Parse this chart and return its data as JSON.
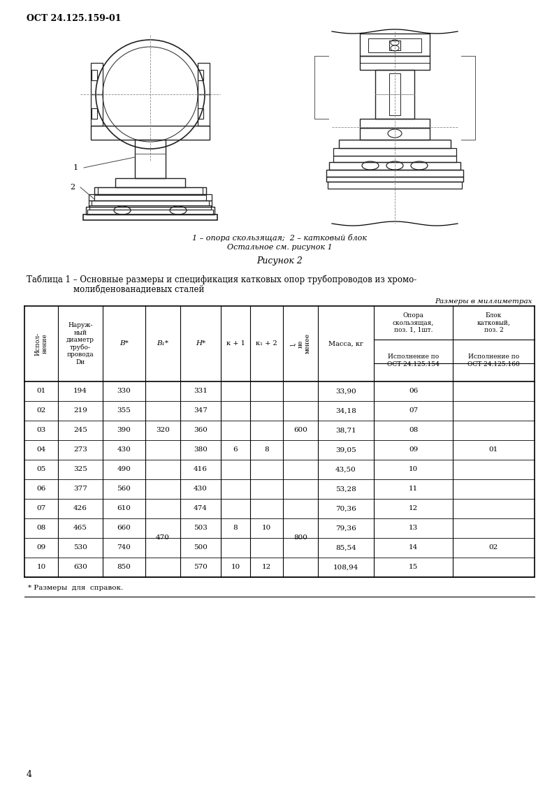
{
  "header_text": "ОСТ 24.125.159-01",
  "figure_caption_line1": "1 – опора скользящая;  2 – катковый блок",
  "figure_caption_line2": "Остальное см. рисунок 1",
  "figure_label": "Рисунок 2",
  "table_title_line1": "Таблица 1 – Основные размеры и спецификация катковых опор трубопроводов из хромо-",
  "table_title_line2": "молибденованадиевых сталей",
  "size_note": "Размеры в миллиметрах",
  "footnote": "* Размеры  для  справок.",
  "page_number": "4",
  "rows": [
    {
      "ispoln": "01",
      "D": "194",
      "B": "330",
      "H": "331",
      "massa": "33,90",
      "opora": "06"
    },
    {
      "ispoln": "02",
      "D": "219",
      "B": "355",
      "H": "347",
      "massa": "34,18",
      "opora": "07"
    },
    {
      "ispoln": "03",
      "D": "245",
      "B": "390",
      "H": "360",
      "massa": "38,71",
      "opora": "08"
    },
    {
      "ispoln": "04",
      "D": "273",
      "B": "430",
      "H": "380",
      "massa": "39,05",
      "opora": "09"
    },
    {
      "ispoln": "05",
      "D": "325",
      "B": "490",
      "H": "416",
      "massa": "43,50",
      "opora": "10"
    },
    {
      "ispoln": "06",
      "D": "377",
      "B": "560",
      "H": "430",
      "massa": "53,28",
      "opora": "11"
    },
    {
      "ispoln": "07",
      "D": "426",
      "B": "610",
      "H": "474",
      "massa": "70,36",
      "opora": "12"
    },
    {
      "ispoln": "08",
      "D": "465",
      "B": "660",
      "H": "503",
      "massa": "79,36",
      "opora": "13"
    },
    {
      "ispoln": "09",
      "D": "530",
      "B": "740",
      "H": "500",
      "massa": "85,54",
      "opora": "14"
    },
    {
      "ispoln": "10",
      "D": "630",
      "B": "850",
      "H": "570",
      "massa": "108,94",
      "opora": "15"
    }
  ]
}
